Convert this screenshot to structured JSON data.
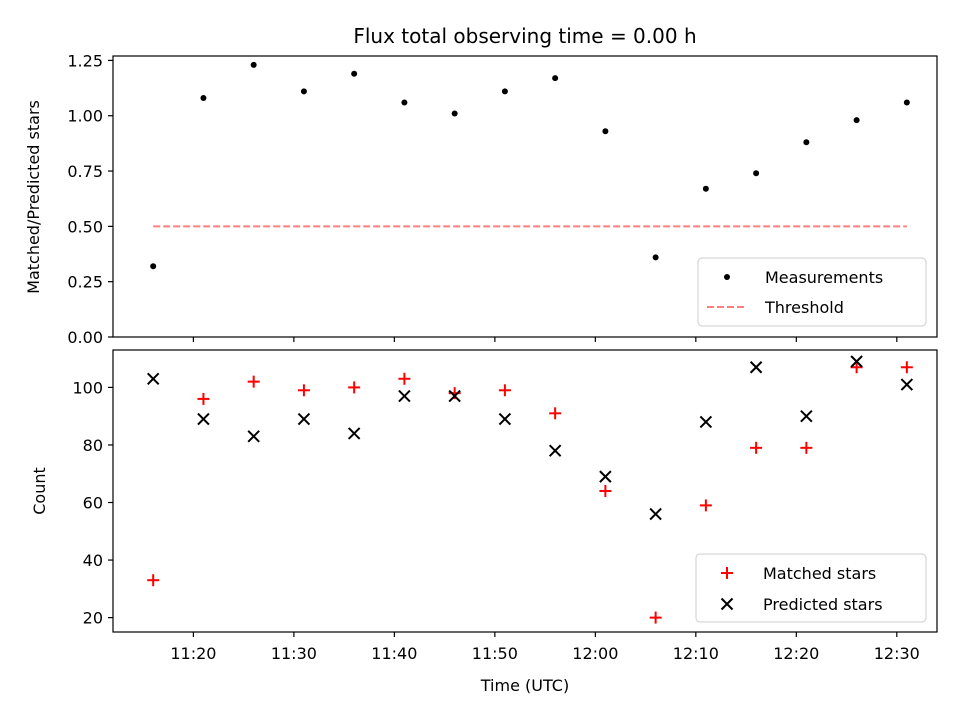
{
  "colors": {
    "measurement": "#000000",
    "threshold": "#ff7f7f",
    "matched": "#ff0000",
    "predicted": "#000000"
  },
  "chart_data": [
    {
      "type": "scatter",
      "title": "Flux total observing time = 0.00 h",
      "xlabel": "",
      "ylabel": "Matched/Predicted stars",
      "xlim": [
        "11:12",
        "12:34"
      ],
      "ylim": [
        0,
        1.27
      ],
      "yticks": [
        "0.00",
        "0.25",
        "0.50",
        "0.75",
        "1.00",
        "1.25"
      ],
      "x": [
        "11:16",
        "11:21",
        "11:26",
        "11:31",
        "11:36",
        "11:41",
        "11:46",
        "11:51",
        "11:56",
        "12:01",
        "12:06",
        "12:11",
        "12:16",
        "12:21",
        "12:26",
        "12:31"
      ],
      "series": [
        {
          "name": "Measurements",
          "marker": "dot",
          "values": [
            0.32,
            1.08,
            1.23,
            1.11,
            1.19,
            1.06,
            1.01,
            1.11,
            1.17,
            0.93,
            0.36,
            0.67,
            0.74,
            0.88,
            0.98,
            1.06
          ]
        },
        {
          "name": "Threshold",
          "style": "dashed",
          "x": [
            "11:16",
            "12:31"
          ],
          "values": [
            0.5,
            0.5
          ]
        }
      ],
      "legend": "lower-right",
      "grid": false
    },
    {
      "type": "scatter",
      "title": "",
      "xlabel": "Time (UTC)",
      "ylabel": "Count",
      "xlim": [
        "11:12",
        "12:34"
      ],
      "ylim": [
        15,
        113
      ],
      "xticks": [
        "11:20",
        "11:30",
        "11:40",
        "11:50",
        "12:00",
        "12:10",
        "12:20",
        "12:30"
      ],
      "yticks": [
        "20",
        "40",
        "60",
        "80",
        "100"
      ],
      "x": [
        "11:16",
        "11:21",
        "11:26",
        "11:31",
        "11:36",
        "11:41",
        "11:46",
        "11:51",
        "11:56",
        "12:01",
        "12:06",
        "12:11",
        "12:16",
        "12:21",
        "12:26",
        "12:31"
      ],
      "series": [
        {
          "name": "Matched stars",
          "marker": "plus",
          "values": [
            33,
            96,
            102,
            99,
            100,
            103,
            98,
            99,
            91,
            64,
            20,
            59,
            79,
            79,
            107,
            107
          ]
        },
        {
          "name": "Predicted stars",
          "marker": "x",
          "values": [
            103,
            89,
            83,
            89,
            84,
            97,
            97,
            89,
            78,
            69,
            56,
            88,
            107,
            90,
            109,
            101
          ]
        }
      ],
      "legend": "lower-right",
      "grid": false
    }
  ]
}
